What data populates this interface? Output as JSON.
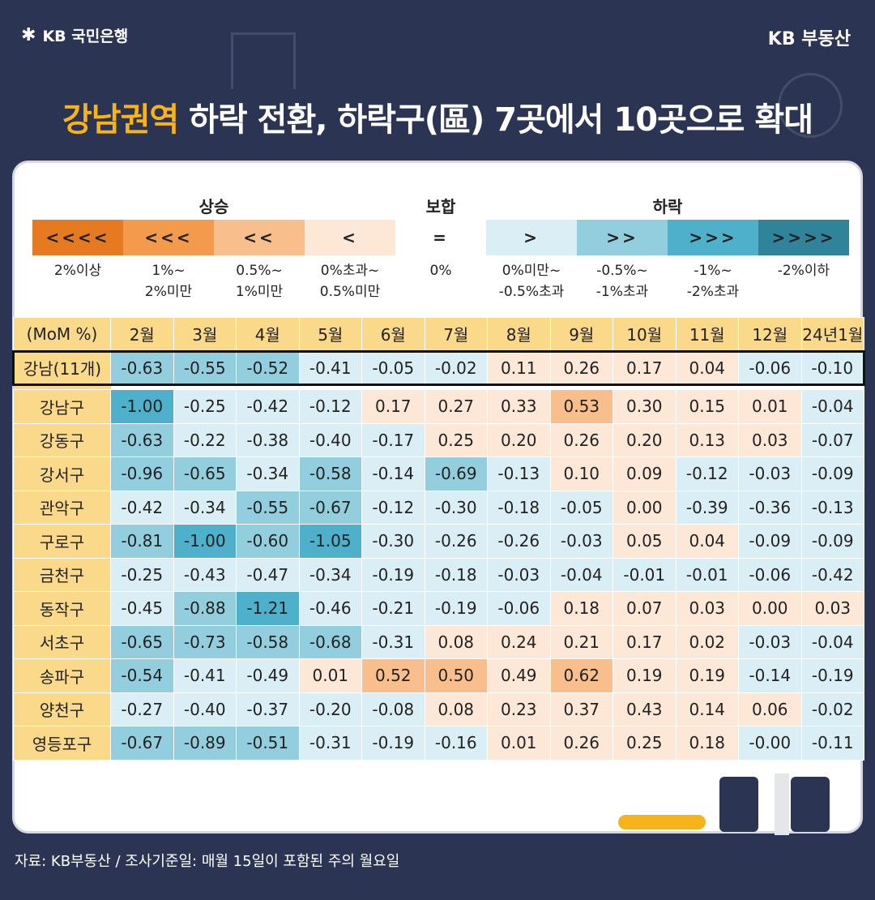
{
  "header": {
    "bank_logo": "KB 국민은행",
    "brand": "KB 부동산"
  },
  "headline": {
    "accent": "강남권역",
    "rest": " 하락 전환, 하락구(區) 7곳에서 10곳으로 확대"
  },
  "legend": {
    "groups": {
      "up": "상승",
      "flat": "보합",
      "down": "하락"
    },
    "items": [
      {
        "symbol": "<<<<",
        "desc": [
          "2%이상"
        ],
        "color": "#e57a20",
        "cls": "c-up4"
      },
      {
        "symbol": "<<<",
        "desc": [
          "1%~",
          "2%미만"
        ],
        "color": "#f49a4d",
        "cls": "c-up3"
      },
      {
        "symbol": "<<",
        "desc": [
          "0.5%~",
          "1%미만"
        ],
        "color": "#f8bf8d",
        "cls": "c-up2"
      },
      {
        "symbol": "<",
        "desc": [
          "0%초과~",
          "0.5%미만"
        ],
        "color": "#fde7d7",
        "cls": "c-up1"
      },
      {
        "symbol": "=",
        "desc": [
          "0%"
        ],
        "color": "#ffffff",
        "cls": "c-flat"
      },
      {
        "symbol": ">",
        "desc": [
          "0%미만~",
          "-0.5%초과"
        ],
        "color": "#daeef5",
        "cls": "c-dn1"
      },
      {
        "symbol": ">>",
        "desc": [
          "-0.5%~",
          "-1%초과"
        ],
        "color": "#93cedf",
        "cls": "c-dn2"
      },
      {
        "symbol": ">>>",
        "desc": [
          "-1%~",
          "-2%초과"
        ],
        "color": "#4eb0ca",
        "cls": "c-dn3"
      },
      {
        "symbol": ">>>>",
        "desc": [
          "-2%이하"
        ],
        "color": "#2f8499",
        "cls": "c-dn4"
      }
    ]
  },
  "table": {
    "corner": "(MoM %)",
    "months": [
      "2월",
      "3월",
      "4월",
      "5월",
      "6월",
      "7월",
      "8월",
      "9월",
      "10월",
      "11월",
      "12월",
      "24년1월"
    ],
    "total": {
      "name": "강남(11개)",
      "values": [
        "-0.63",
        "-0.55",
        "-0.52",
        "-0.41",
        "-0.05",
        "-0.02",
        "0.11",
        "0.26",
        "0.17",
        "0.04",
        "-0.06",
        "-0.10"
      ],
      "cls": [
        "c-dn2",
        "c-dn2",
        "c-dn2",
        "c-dn1",
        "c-dn1",
        "c-dn1",
        "c-up1",
        "c-up1",
        "c-up1",
        "c-up1",
        "c-dn1",
        "c-dn1"
      ]
    },
    "rows": [
      {
        "name": "강남구",
        "values": [
          "-1.00",
          "-0.25",
          "-0.42",
          "-0.12",
          "0.17",
          "0.27",
          "0.33",
          "0.53",
          "0.30",
          "0.15",
          "0.01",
          "-0.04"
        ],
        "cls": [
          "c-dn3",
          "c-dn1",
          "c-dn1",
          "c-dn1",
          "c-up1",
          "c-up1",
          "c-up1",
          "c-up2",
          "c-up1",
          "c-up1",
          "c-up1",
          "c-dn1"
        ]
      },
      {
        "name": "강동구",
        "values": [
          "-0.63",
          "-0.22",
          "-0.38",
          "-0.40",
          "-0.17",
          "0.25",
          "0.20",
          "0.26",
          "0.20",
          "0.13",
          "0.03",
          "-0.07"
        ],
        "cls": [
          "c-dn2",
          "c-dn1",
          "c-dn1",
          "c-dn1",
          "c-dn1",
          "c-up1",
          "c-up1",
          "c-up1",
          "c-up1",
          "c-up1",
          "c-up1",
          "c-dn1"
        ]
      },
      {
        "name": "강서구",
        "values": [
          "-0.96",
          "-0.65",
          "-0.34",
          "-0.58",
          "-0.14",
          "-0.69",
          "-0.13",
          "0.10",
          "0.09",
          "-0.12",
          "-0.03",
          "-0.09"
        ],
        "cls": [
          "c-dn2",
          "c-dn2",
          "c-dn1",
          "c-dn2",
          "c-dn1",
          "c-dn2",
          "c-dn1",
          "c-up1",
          "c-up1",
          "c-dn1",
          "c-dn1",
          "c-dn1"
        ]
      },
      {
        "name": "관악구",
        "values": [
          "-0.42",
          "-0.34",
          "-0.55",
          "-0.67",
          "-0.12",
          "-0.30",
          "-0.18",
          "-0.05",
          "0.00",
          "-0.39",
          "-0.36",
          "-0.13"
        ],
        "cls": [
          "c-dn1",
          "c-dn1",
          "c-dn2",
          "c-dn2",
          "c-dn1",
          "c-dn1",
          "c-dn1",
          "c-dn1",
          "c-up1",
          "c-dn1",
          "c-dn1",
          "c-dn1"
        ]
      },
      {
        "name": "구로구",
        "values": [
          "-0.81",
          "-1.00",
          "-0.60",
          "-1.05",
          "-0.30",
          "-0.26",
          "-0.26",
          "-0.03",
          "0.05",
          "0.04",
          "-0.09",
          "-0.09"
        ],
        "cls": [
          "c-dn2",
          "c-dn3",
          "c-dn2",
          "c-dn3",
          "c-dn1",
          "c-dn1",
          "c-dn1",
          "c-dn1",
          "c-up1",
          "c-up1",
          "c-dn1",
          "c-dn1"
        ]
      },
      {
        "name": "금천구",
        "values": [
          "-0.25",
          "-0.43",
          "-0.47",
          "-0.34",
          "-0.19",
          "-0.18",
          "-0.03",
          "-0.04",
          "-0.01",
          "-0.01",
          "-0.06",
          "-0.42"
        ],
        "cls": [
          "c-dn1",
          "c-dn1",
          "c-dn1",
          "c-dn1",
          "c-dn1",
          "c-dn1",
          "c-dn1",
          "c-dn1",
          "c-dn1",
          "c-dn1",
          "c-dn1",
          "c-dn1"
        ]
      },
      {
        "name": "동작구",
        "values": [
          "-0.45",
          "-0.88",
          "-1.21",
          "-0.46",
          "-0.21",
          "-0.19",
          "-0.06",
          "0.18",
          "0.07",
          "0.03",
          "0.00",
          "0.03"
        ],
        "cls": [
          "c-dn1",
          "c-dn2",
          "c-dn3",
          "c-dn1",
          "c-dn1",
          "c-dn1",
          "c-dn1",
          "c-up1",
          "c-up1",
          "c-up1",
          "c-up1",
          "c-up1"
        ]
      },
      {
        "name": "서초구",
        "values": [
          "-0.65",
          "-0.73",
          "-0.58",
          "-0.68",
          "-0.31",
          "0.08",
          "0.24",
          "0.21",
          "0.17",
          "0.02",
          "-0.03",
          "-0.04"
        ],
        "cls": [
          "c-dn2",
          "c-dn2",
          "c-dn2",
          "c-dn2",
          "c-dn1",
          "c-up1",
          "c-up1",
          "c-up1",
          "c-up1",
          "c-up1",
          "c-dn1",
          "c-dn1"
        ]
      },
      {
        "name": "송파구",
        "values": [
          "-0.54",
          "-0.41",
          "-0.49",
          "0.01",
          "0.52",
          "0.50",
          "0.49",
          "0.62",
          "0.19",
          "0.19",
          "-0.14",
          "-0.19"
        ],
        "cls": [
          "c-dn2",
          "c-dn1",
          "c-dn1",
          "c-up1",
          "c-up2",
          "c-up2",
          "c-up1",
          "c-up2",
          "c-up1",
          "c-up1",
          "c-dn1",
          "c-dn1"
        ]
      },
      {
        "name": "양천구",
        "values": [
          "-0.27",
          "-0.40",
          "-0.37",
          "-0.20",
          "-0.08",
          "0.08",
          "0.23",
          "0.37",
          "0.43",
          "0.14",
          "0.06",
          "-0.02"
        ],
        "cls": [
          "c-dn1",
          "c-dn1",
          "c-dn1",
          "c-dn1",
          "c-dn1",
          "c-up1",
          "c-up1",
          "c-up1",
          "c-up1",
          "c-up1",
          "c-up1",
          "c-dn1"
        ]
      },
      {
        "name": "영등포구",
        "values": [
          "-0.67",
          "-0.89",
          "-0.51",
          "-0.31",
          "-0.19",
          "-0.16",
          "0.01",
          "0.26",
          "0.25",
          "0.18",
          "-0.00",
          "-0.11"
        ],
        "cls": [
          "c-dn2",
          "c-dn2",
          "c-dn2",
          "c-dn1",
          "c-dn1",
          "c-dn1",
          "c-up1",
          "c-up1",
          "c-up1",
          "c-up1",
          "c-dn1",
          "c-dn1"
        ]
      }
    ]
  },
  "footer": {
    "source": "자료: KB부동산 / 조사기준일: 매월 15일이 포함된 주의 월요일"
  }
}
